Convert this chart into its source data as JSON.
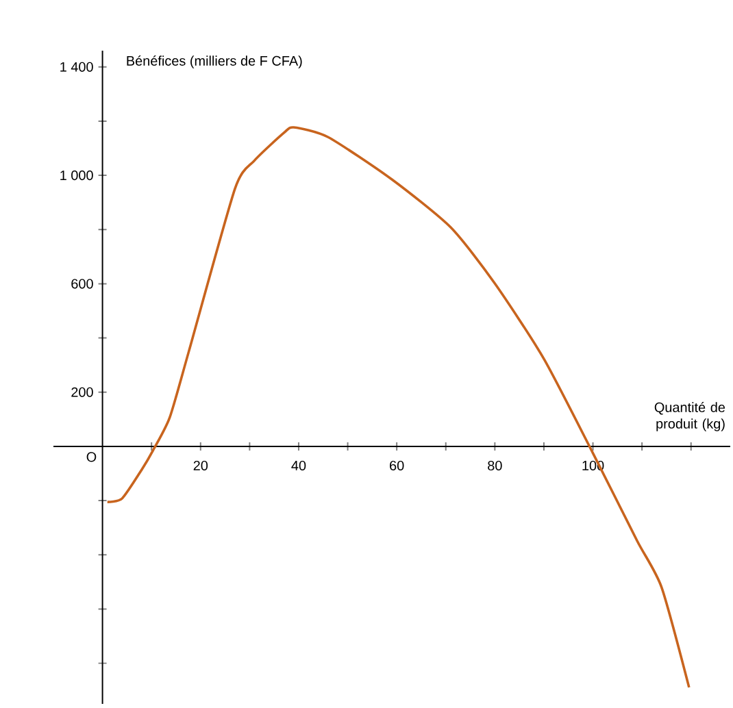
{
  "chart_data": {
    "type": "line",
    "ylabel": "Bénéfices (milliers de F CFA)",
    "xlabel": "Quantité de produit (kg)",
    "xlim": [
      -10,
      128
    ],
    "ylim": [
      -950,
      1460
    ],
    "annotations": [
      "O"
    ],
    "xticks": [
      {
        "value": 10,
        "label": null
      },
      20,
      {
        "value": 30,
        "label": null
      },
      40,
      {
        "value": 50,
        "label": null
      },
      60,
      {
        "value": 70,
        "label": null
      },
      80,
      {
        "value": 90,
        "label": null
      },
      100,
      {
        "value": 110,
        "label": null
      },
      {
        "value": 120,
        "label": null
      }
    ],
    "yticks": [
      {
        "value": -800,
        "label": null
      },
      {
        "value": -600,
        "label": null
      },
      {
        "value": -400,
        "label": null
      },
      {
        "value": -200,
        "label": null
      },
      200,
      {
        "value": 400,
        "label": null
      },
      600,
      {
        "value": 800,
        "label": null
      },
      {
        "value": 1000,
        "label": "1 000"
      },
      {
        "value": 1200,
        "label": null
      },
      {
        "value": 1400,
        "label": "1 400"
      }
    ],
    "grid": false,
    "marker": "none",
    "line_style": "solid",
    "series": [
      {
        "color": "#c8641e",
        "x": [
          1,
          4,
          8,
          10.3,
          13.7,
          17.6,
          27,
          31,
          37,
          39,
          46,
          59,
          71,
          80,
          90,
          100,
          109,
          114,
          119.6
        ],
        "values": [
          -205,
          -192,
          -86,
          -15,
          106,
          350,
          950,
          1055,
          1157,
          1177,
          1141,
          985,
          808,
          601,
          323,
          -25,
          -348,
          -520,
          -889
        ]
      }
    ]
  }
}
